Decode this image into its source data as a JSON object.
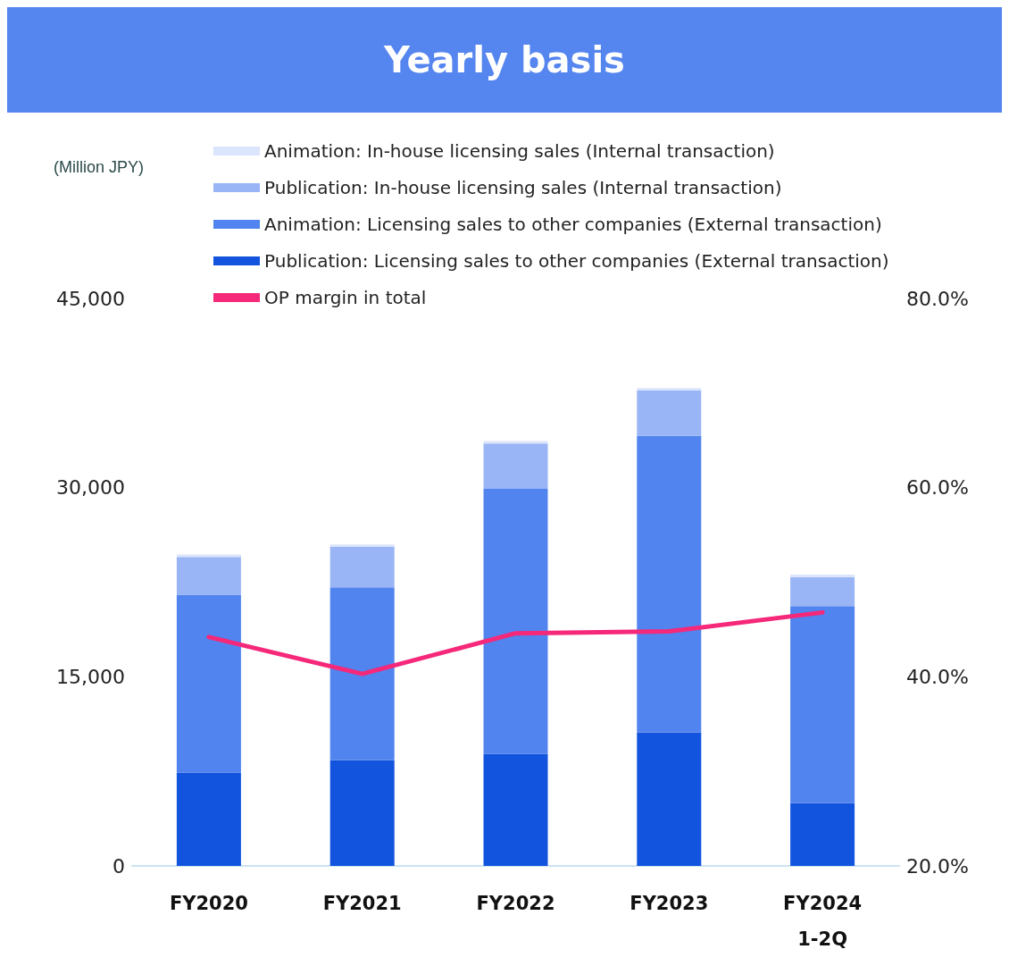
{
  "chart_data": {
    "type": "bar",
    "title": "Yearly basis",
    "annotations": [
      "(Million JPY)"
    ],
    "categories": [
      "FY2020",
      "FY2021",
      "FY2022",
      "FY2023",
      "FY2024\n1-2Q"
    ],
    "stacked": true,
    "series": [
      {
        "name": "Publication: Licensing sales to other companies (External transaction)",
        "color": "#1254de",
        "values": [
          7400,
          8400,
          8900,
          10600,
          5000
        ]
      },
      {
        "name": "Animation: Licensing sales to other companies (External transaction)",
        "color": "#5184ee",
        "values": [
          14100,
          13700,
          21000,
          23500,
          15600
        ]
      },
      {
        "name": "Publication: In-house licensing sales (Internal transaction)",
        "color": "#9ab5f5",
        "values": [
          3000,
          3200,
          3600,
          3600,
          2300
        ]
      },
      {
        "name": "Animation: In-house licensing sales (Internal transaction)",
        "color": "#dbe5fb",
        "values": [
          200,
          200,
          200,
          200,
          200
        ]
      },
      {
        "name": "OP margin in total",
        "type": "line",
        "axis": "y2",
        "color": "#f5287a",
        "marker": "none",
        "values": [
          44.2,
          40.3,
          44.6,
          44.8,
          46.8
        ]
      }
    ],
    "ylim": [
      0,
      45000
    ],
    "yticks": [
      {
        "value": 0,
        "label": "0"
      },
      {
        "value": 15000,
        "label": "15,000"
      },
      {
        "value": 30000,
        "label": "30,000"
      },
      {
        "value": 45000,
        "label": "45,000"
      }
    ],
    "y2lim": [
      20,
      80
    ],
    "y2ticks": [
      {
        "value": 20,
        "label": "20.0%"
      },
      {
        "value": 40,
        "label": "40.0%"
      },
      {
        "value": 60,
        "label": "60.0%"
      },
      {
        "value": 80,
        "label": "80.0%"
      }
    ],
    "grid": false,
    "legend": "top"
  }
}
